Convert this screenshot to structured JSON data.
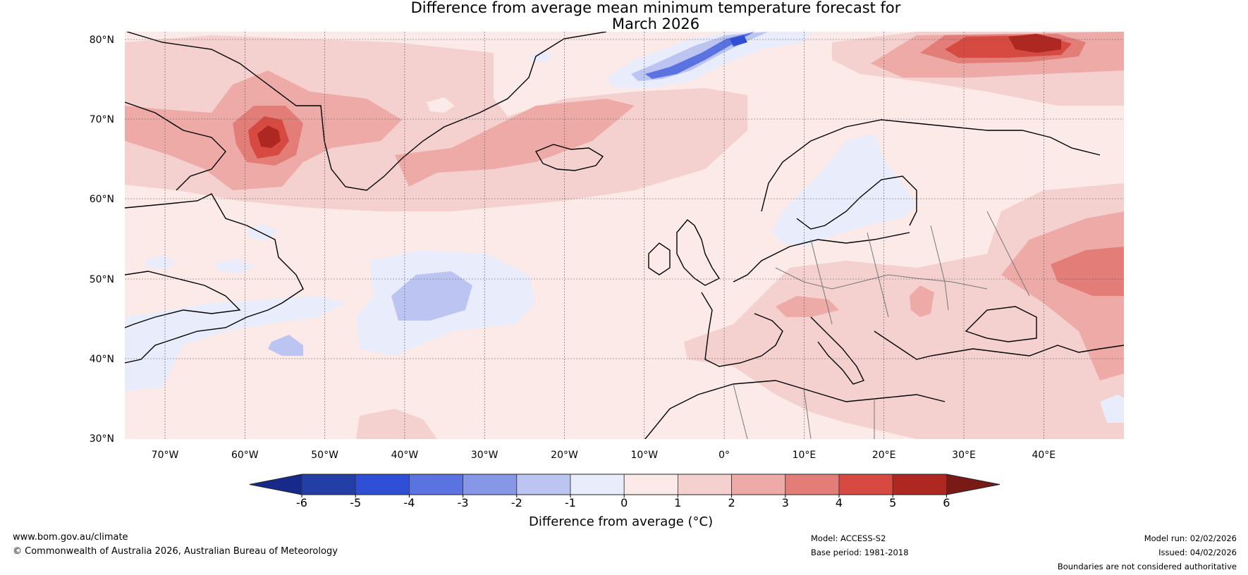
{
  "title": {
    "line1": "Difference from average mean minimum temperature forecast for",
    "line2": "March 2026"
  },
  "map": {
    "lat_labels": [
      "80°N",
      "70°N",
      "60°N",
      "50°N",
      "40°N",
      "30°N"
    ],
    "lon_labels": [
      "70°W",
      "60°W",
      "50°W",
      "40°W",
      "30°W",
      "20°W",
      "10°W",
      "0°",
      "10°E",
      "20°E",
      "30°E",
      "40°E"
    ],
    "base_color": "#fbeae8",
    "regions": [
      {
        "name": "greenland-west-warm-core",
        "label": "Warm anomaly west Greenland (+5 to +6)"
      },
      {
        "name": "barents-warm-core",
        "label": "Warm anomaly Barents Sea (+5 to +6)"
      },
      {
        "name": "svalbard-cold",
        "label": "Cold anomaly near Svalbard (-4)"
      },
      {
        "name": "atlantic-cold",
        "label": "Cold anomaly mid Atlantic (-2)"
      },
      {
        "name": "scandinavia-cold",
        "label": "Cold anomaly Scandinavia (-1)"
      },
      {
        "name": "russia-warm",
        "label": "Warm anomaly western Russia (+3 to +4)"
      }
    ]
  },
  "colorbar": {
    "ticks": [
      "-6",
      "-5",
      "-4",
      "-3",
      "-2",
      "-1",
      "0",
      "1",
      "2",
      "3",
      "4",
      "5",
      "6"
    ],
    "colors": [
      "#243ea8",
      "#2e4fd6",
      "#5b73e0",
      "#8797e8",
      "#bcc5f2",
      "#e8ecfb",
      "#fbeae8",
      "#f4d1cf",
      "#edaaa7",
      "#e27d78",
      "#d74a42",
      "#ae2721"
    ],
    "below_color": "#17298a",
    "above_color": "#7a1a17",
    "title": "Difference from average (°C)"
  },
  "footer": {
    "website": "www.bom.gov.au/climate",
    "copyright": "© Commonwealth of Australia 2026, Australian Bureau of Meteorology",
    "model": "Model: ACCESS-S2",
    "base_period": "Base period: 1981-2018",
    "model_run": "Model run: 02/02/2026",
    "issued": "Issued: 04/02/2026",
    "disclaimer": "Boundaries are not considered authoritative"
  }
}
